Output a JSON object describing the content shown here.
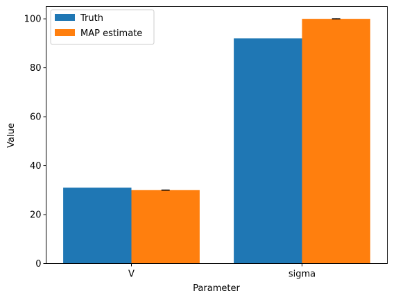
{
  "chart_data": {
    "type": "bar",
    "categories": [
      "V",
      "sigma"
    ],
    "series": [
      {
        "name": "Truth",
        "values": [
          31,
          92
        ],
        "color": "#1f77b4"
      },
      {
        "name": "MAP estimate",
        "values": [
          30,
          100
        ],
        "color": "#ff7f0e",
        "errors": [
          0.2,
          0.2
        ]
      }
    ],
    "xlabel": "Parameter",
    "ylabel": "Value",
    "ylim": [
      0,
      105
    ],
    "yticks": [
      0,
      20,
      40,
      60,
      80,
      100
    ],
    "legend_position": "top-left",
    "grid": false
  }
}
